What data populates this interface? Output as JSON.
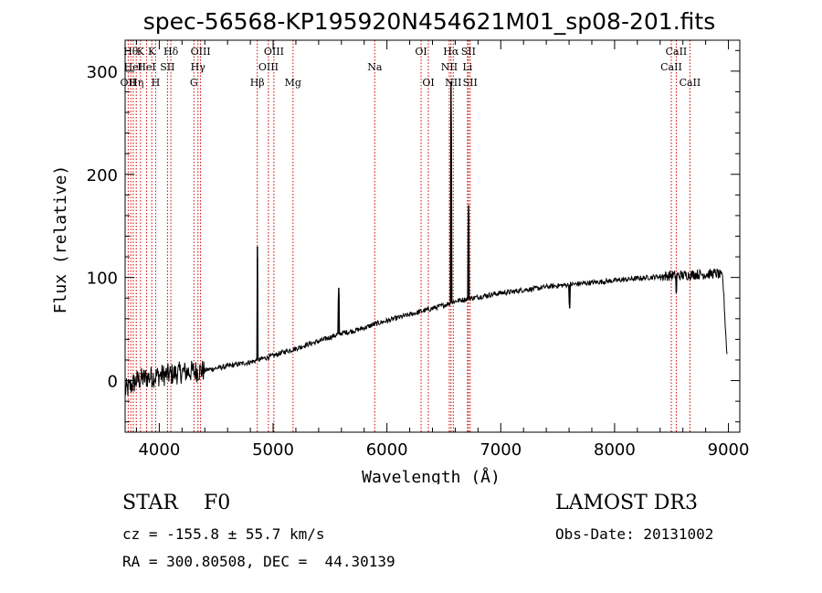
{
  "chart_data": {
    "type": "line",
    "title": "spec-56568-KP195920N454621M01_sp08-201.fits",
    "xlabel": "Wavelength (Å)",
    "ylabel": "Flux (relative)",
    "xlim": [
      3700,
      9100
    ],
    "ylim": [
      -50,
      330
    ],
    "xticks": [
      4000,
      5000,
      6000,
      7000,
      8000,
      9000
    ],
    "yticks": [
      0,
      100,
      200,
      300
    ],
    "grid": false,
    "series": [
      {
        "name": "spectrum",
        "x": [
          3700,
          3750,
          3800,
          3850,
          3900,
          3950,
          4000,
          4100,
          4200,
          4300,
          4400,
          4500,
          4600,
          4700,
          4800,
          4900,
          5000,
          5100,
          5200,
          5300,
          5400,
          5500,
          5600,
          5700,
          5800,
          5900,
          6000,
          6100,
          6200,
          6300,
          6400,
          6500,
          6550,
          6600,
          6650,
          6700,
          6750,
          6800,
          6900,
          7000,
          7100,
          7200,
          7300,
          7400,
          7500,
          7600,
          7700,
          7800,
          7900,
          8000,
          8100,
          8200,
          8300,
          8400,
          8500,
          8600,
          8700,
          8800,
          8900,
          8950,
          8990
        ],
        "y": [
          -10,
          -5,
          0,
          2,
          3,
          4,
          5,
          6,
          8,
          9,
          10,
          12,
          14,
          16,
          18,
          21,
          24,
          28,
          31,
          35,
          38,
          42,
          46,
          48,
          51,
          55,
          58,
          61,
          64,
          67,
          70,
          73,
          75,
          77,
          78,
          79,
          80,
          81,
          83,
          85,
          86,
          88,
          89,
          91,
          92,
          93,
          94,
          95,
          96,
          97,
          98,
          99,
          100,
          101,
          102,
          102,
          103,
          103,
          104,
          100,
          20
        ]
      }
    ],
    "features": [
      {
        "x": 4862,
        "y": 130,
        "label": "Hβ"
      },
      {
        "x": 5577,
        "y": 90,
        "label": ""
      },
      {
        "x": 6563,
        "y": 290,
        "label": "Hα"
      },
      {
        "x": 6717,
        "y": 170,
        "label": "SII"
      },
      {
        "x": 7605,
        "y": 70,
        "label": ""
      },
      {
        "x": 8542,
        "y": 85,
        "label": "CaII"
      }
    ],
    "lines": [
      {
        "x": 3727,
        "label": "OII",
        "row": 2
      },
      {
        "x": 3750,
        "label": "Hθ",
        "row": 0
      },
      {
        "x": 3771,
        "label": "HeI",
        "row": 1
      },
      {
        "x": 3798,
        "label": "Hη",
        "row": 2
      },
      {
        "x": 3835,
        "label": "K",
        "row": 0
      },
      {
        "x": 3889,
        "label": "HeI",
        "row": 1
      },
      {
        "x": 3934,
        "label": "K",
        "row": 0
      },
      {
        "x": 3968,
        "label": "H",
        "row": 2
      },
      {
        "x": 4072,
        "label": "SII",
        "row": 1
      },
      {
        "x": 4102,
        "label": "Hδ",
        "row": 0
      },
      {
        "x": 4304,
        "label": "G",
        "row": 2
      },
      {
        "x": 4340,
        "label": "Hγ",
        "row": 1
      },
      {
        "x": 4363,
        "label": "OIII",
        "row": 0
      },
      {
        "x": 4861,
        "label": "Hβ",
        "row": 2
      },
      {
        "x": 4959,
        "label": "OIII",
        "row": 1
      },
      {
        "x": 5007,
        "label": "OIII",
        "row": 0
      },
      {
        "x": 5175,
        "label": "Mg",
        "row": 2
      },
      {
        "x": 5893,
        "label": "Na",
        "row": 1
      },
      {
        "x": 6300,
        "label": "OI",
        "row": 0
      },
      {
        "x": 6364,
        "label": "OI",
        "row": 2
      },
      {
        "x": 6548,
        "label": "NII",
        "row": 1
      },
      {
        "x": 6563,
        "label": "Hα",
        "row": 0
      },
      {
        "x": 6583,
        "label": "NII",
        "row": 2
      },
      {
        "x": 6708,
        "label": "Li",
        "row": 1
      },
      {
        "x": 6716,
        "label": "SII",
        "row": 0
      },
      {
        "x": 6731,
        "label": "SII",
        "row": 2
      },
      {
        "x": 8498,
        "label": "CaII",
        "row": 1
      },
      {
        "x": 8542,
        "label": "CaII",
        "row": 0
      },
      {
        "x": 8662,
        "label": "CaII",
        "row": 2
      }
    ]
  },
  "info": {
    "class_label": "STAR",
    "subclass": "F0",
    "survey": "LAMOST DR3",
    "cz": "cz = -155.8 ± 55.7 km/s",
    "obs_date": "Obs-Date: 20131002",
    "coords": "RA = 300.80508, DEC =  44.30139"
  },
  "colors": {
    "line_marker": "#cc0000",
    "spectrum": "#000000"
  }
}
